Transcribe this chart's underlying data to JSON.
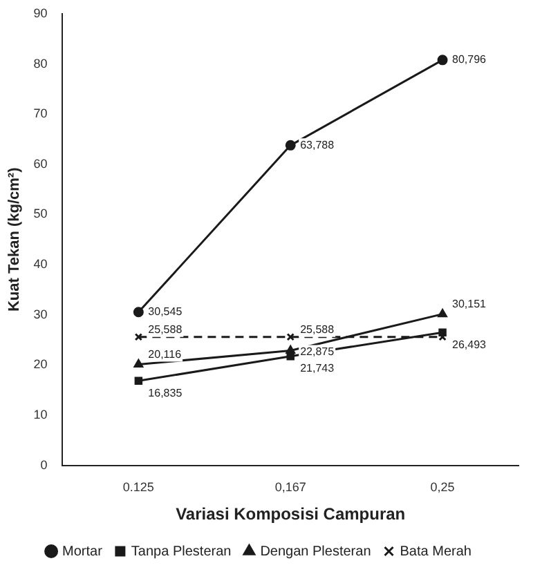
{
  "chart_data": {
    "type": "line",
    "xlabel": "Variasi Komposisi Campuran",
    "ylabel": "Kuat Tekan (kg/cm²)",
    "categories": [
      "0.125",
      "0,167",
      "0,25"
    ],
    "ylim": [
      0,
      90
    ],
    "yticks": [
      0,
      10,
      20,
      30,
      40,
      50,
      60,
      70,
      80,
      90
    ],
    "grid": false,
    "legend": "bottom",
    "series": [
      {
        "name": "Mortar",
        "color": "#1a1a1a",
        "marker": "circle",
        "line_style": "solid",
        "values": [
          30.545,
          63.788,
          80.796
        ],
        "value_labels": [
          "30,545",
          "63,788",
          "80,796"
        ]
      },
      {
        "name": "Tanpa Plesteran",
        "color": "#1a1a1a",
        "marker": "square",
        "line_style": "solid",
        "values": [
          16.835,
          21.743,
          26.493
        ],
        "value_labels": [
          "16,835",
          "21,743",
          "26,493"
        ]
      },
      {
        "name": "Dengan Plesteran",
        "color": "#1a1a1a",
        "marker": "triangle",
        "line_style": "solid",
        "values": [
          20.116,
          22.875,
          30.151
        ],
        "value_labels": [
          "20,116",
          "22,875",
          "30,151"
        ]
      },
      {
        "name": "Bata Merah",
        "color": "#1a1a1a",
        "marker": "cross",
        "line_style": "dashed",
        "values": [
          25.588,
          25.588,
          25.588
        ],
        "value_labels": [
          "25,588",
          "25,588",
          null
        ]
      }
    ]
  }
}
